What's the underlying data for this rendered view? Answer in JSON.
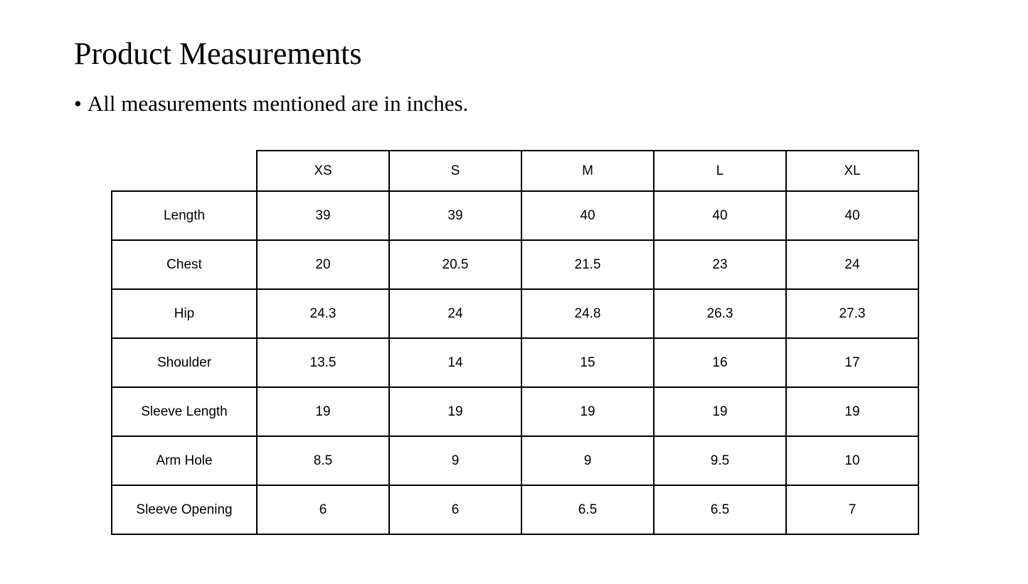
{
  "title": "Product Measurements",
  "bullet": "All measurements mentioned are in inches.",
  "table": {
    "sizes": [
      "XS",
      "S",
      "M",
      "L",
      "XL"
    ],
    "rows": [
      {
        "label": "Length",
        "values": [
          "39",
          "39",
          "40",
          "40",
          "40"
        ]
      },
      {
        "label": "Chest",
        "values": [
          "20",
          "20.5",
          "21.5",
          "23",
          "24"
        ]
      },
      {
        "label": "Hip",
        "values": [
          "24.3",
          "24",
          "24.8",
          "26.3",
          "27.3"
        ]
      },
      {
        "label": "Shoulder",
        "values": [
          "13.5",
          "14",
          "15",
          "16",
          "17"
        ]
      },
      {
        "label": "Sleeve Length",
        "values": [
          "19",
          "19",
          "19",
          "19",
          "19"
        ]
      },
      {
        "label": "Arm Hole",
        "values": [
          "8.5",
          "9",
          "9",
          "9.5",
          "10"
        ]
      },
      {
        "label": "Sleeve Opening",
        "values": [
          "6",
          "6",
          "6.5",
          "6.5",
          "7"
        ]
      }
    ]
  }
}
